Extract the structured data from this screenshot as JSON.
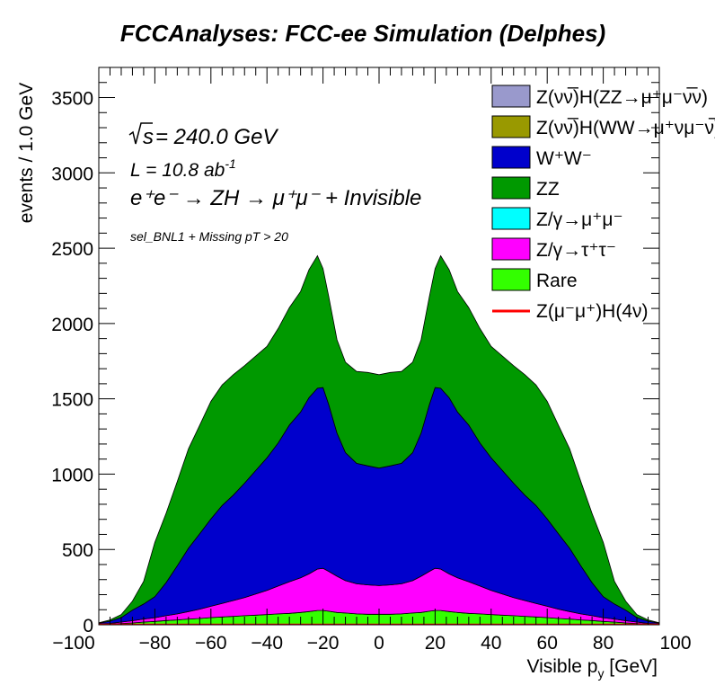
{
  "chart_data": {
    "type": "area",
    "title": "FCCAnalyses: FCC-ee Simulation (Delphes)",
    "xlabel": "Visible p",
    "xlabel_sub": "y",
    "xlabel_unit": "[GeV]",
    "ylabel": "events / 1.0 GeV",
    "xlim": [
      -100,
      100
    ],
    "ylim": [
      0,
      3700
    ],
    "xticks": [
      "−100",
      "−80",
      "−60",
      "−40",
      "−20",
      "0",
      "20",
      "40",
      "60",
      "80",
      "100"
    ],
    "yticks": [
      "0",
      "500",
      "1000",
      "1500",
      "2000",
      "2500",
      "3000",
      "3500"
    ],
    "stacked": true,
    "grid": false,
    "legend_position": "top-right",
    "annotations": {
      "sqrt_s": "= 240.0 GeV",
      "sqrt_s_symbol": "s",
      "lumi": "L = 10.8 ab",
      "lumi_exp": "-1",
      "process": "e⁺e⁻ → ZH → μ⁺μ⁻ + Invisible",
      "selection": "sel_BNL1 + Missing pT > 20"
    },
    "x": [
      -100,
      -96,
      -92,
      -88,
      -84,
      -80,
      -76,
      -72,
      -68,
      -64,
      -60,
      -56,
      -52,
      -48,
      -44,
      -40,
      -36,
      -32,
      -28,
      -25,
      -22,
      -20,
      -18,
      -15,
      -12,
      -8,
      -4,
      0,
      4,
      8,
      12,
      15,
      18,
      20,
      22,
      25,
      28,
      32,
      36,
      40,
      44,
      48,
      52,
      56,
      60,
      64,
      68,
      72,
      76,
      80,
      84,
      88,
      92,
      96,
      100
    ],
    "series": [
      {
        "name": "Z(νν̅)H(ZZ→μ⁺μ⁻ν̅ν)",
        "color": "#9999cc",
        "values": [
          0,
          0,
          0,
          0,
          0,
          0,
          0,
          0,
          0,
          0,
          0,
          0,
          0,
          0,
          0,
          0,
          0,
          0,
          0,
          0,
          0,
          0,
          0,
          0,
          0,
          0,
          0,
          0,
          0,
          0,
          0,
          0,
          0,
          0,
          0,
          0,
          0,
          0,
          0,
          0,
          0,
          0,
          0,
          0,
          0,
          0,
          0,
          0,
          0,
          0,
          0,
          0,
          0,
          0,
          0
        ]
      },
      {
        "name": "Z(νν̅)H(WW→μ⁺νμ⁻ν̅)",
        "color": "#999900",
        "values": [
          0,
          0,
          0,
          0,
          0,
          0,
          0,
          0,
          0,
          0,
          0,
          0,
          0,
          0,
          0,
          0,
          0,
          0,
          0,
          0,
          0,
          0,
          0,
          0,
          0,
          0,
          0,
          0,
          0,
          0,
          0,
          0,
          0,
          0,
          0,
          0,
          0,
          0,
          0,
          0,
          0,
          0,
          0,
          0,
          0,
          0,
          0,
          0,
          0,
          0,
          0,
          0,
          0,
          0,
          0
        ]
      },
      {
        "name": "Rare",
        "color": "#33ff00",
        "values": [
          2,
          4,
          8,
          12,
          18,
          22,
          28,
          32,
          38,
          42,
          48,
          52,
          56,
          60,
          64,
          68,
          72,
          76,
          82,
          88,
          95,
          95,
          90,
          82,
          78,
          72,
          70,
          70,
          70,
          72,
          78,
          82,
          90,
          95,
          95,
          88,
          82,
          76,
          72,
          68,
          64,
          60,
          56,
          52,
          48,
          42,
          38,
          32,
          28,
          22,
          18,
          12,
          8,
          4,
          2
        ]
      },
      {
        "name": "Z/γ→τ⁺τ⁻",
        "color": "#ff00ff",
        "values": [
          3,
          5,
          10,
          15,
          20,
          25,
          32,
          40,
          50,
          62,
          75,
          90,
          105,
          120,
          140,
          160,
          185,
          210,
          230,
          250,
          275,
          280,
          265,
          240,
          215,
          200,
          195,
          190,
          195,
          200,
          215,
          240,
          265,
          280,
          275,
          250,
          230,
          210,
          185,
          160,
          140,
          120,
          105,
          90,
          75,
          62,
          50,
          40,
          32,
          25,
          20,
          15,
          10,
          5,
          3
        ]
      },
      {
        "name": "Z/γ→μ⁺μ⁻",
        "color": "#00ffff",
        "values": [
          0,
          0,
          0,
          0,
          0,
          0,
          0,
          0,
          0,
          0,
          0,
          0,
          0,
          0,
          0,
          0,
          0,
          0,
          0,
          0,
          0,
          0,
          0,
          0,
          0,
          0,
          0,
          0,
          0,
          0,
          0,
          0,
          0,
          0,
          0,
          0,
          0,
          0,
          0,
          0,
          0,
          0,
          0,
          0,
          0,
          0,
          0,
          0,
          0,
          0,
          0,
          0,
          0,
          0,
          0
        ]
      },
      {
        "name": "W⁺W⁻",
        "color": "#0000cc",
        "values": [
          5,
          15,
          30,
          70,
          100,
          140,
          220,
          320,
          420,
          500,
          580,
          650,
          700,
          760,
          820,
          880,
          950,
          1040,
          1100,
          1170,
          1200,
          1200,
          1110,
          950,
          850,
          800,
          790,
          780,
          790,
          800,
          850,
          950,
          1110,
          1200,
          1200,
          1170,
          1100,
          1040,
          950,
          880,
          820,
          760,
          700,
          650,
          580,
          500,
          420,
          320,
          220,
          140,
          100,
          70,
          30,
          15,
          5
        ]
      },
      {
        "name": "ZZ",
        "color": "#009900",
        "values": [
          3,
          8,
          20,
          60,
          150,
          360,
          460,
          560,
          660,
          720,
          780,
          800,
          800,
          780,
          760,
          740,
          760,
          780,
          800,
          850,
          880,
          790,
          720,
          620,
          600,
          610,
          620,
          620,
          620,
          610,
          600,
          620,
          720,
          790,
          880,
          850,
          800,
          780,
          760,
          740,
          760,
          780,
          800,
          800,
          780,
          720,
          660,
          560,
          460,
          360,
          150,
          60,
          20,
          8,
          3
        ]
      }
    ],
    "signal": {
      "name": "Z(μ⁻μ⁺)H(4ν)",
      "color": "#ff0000",
      "values": [
        0,
        0,
        0,
        0,
        0,
        0,
        0,
        0,
        0,
        0,
        0,
        0,
        0,
        0,
        0,
        0,
        0,
        0,
        0,
        0,
        0,
        0,
        0,
        0,
        0,
        0,
        0,
        0,
        0,
        0,
        0,
        0,
        0,
        0,
        0,
        0,
        0,
        0,
        0,
        0,
        0,
        0,
        0,
        0,
        0,
        0,
        0,
        0,
        0,
        0,
        0,
        0,
        0,
        0,
        0
      ]
    },
    "legend_order": [
      {
        "name": "Z(νν̅)H(ZZ→μ⁺μ⁻ν̅ν)",
        "color": "#9999cc",
        "kind": "box"
      },
      {
        "name": "Z(νν̅)H(WW→μ⁺νμ⁻ν̅)",
        "color": "#999900",
        "kind": "box"
      },
      {
        "name": "W⁺W⁻",
        "color": "#0000cc",
        "kind": "box"
      },
      {
        "name": "ZZ",
        "color": "#009900",
        "kind": "box"
      },
      {
        "name": "Z/γ→μ⁺μ⁻",
        "color": "#00ffff",
        "kind": "box"
      },
      {
        "name": "Z/γ→τ⁺τ⁻",
        "color": "#ff00ff",
        "kind": "box"
      },
      {
        "name": "Rare",
        "color": "#33ff00",
        "kind": "box"
      },
      {
        "name": "Z(μ⁻μ⁺)H(4ν)",
        "color": "#ff0000",
        "kind": "line"
      }
    ]
  }
}
